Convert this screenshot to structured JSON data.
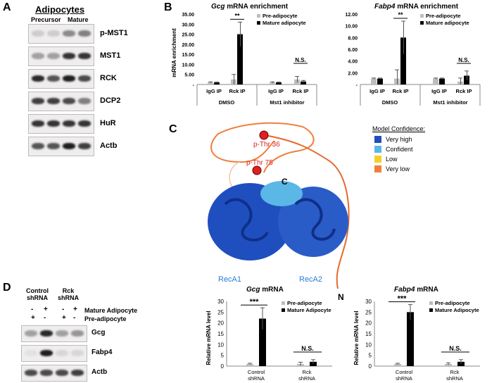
{
  "panelA": {
    "letter": "A",
    "header": "Adipocytes",
    "precursor": "Precursor",
    "mature": "Mature",
    "blots": [
      "p-MST1",
      "MST1",
      "RCK",
      "DCP2",
      "HuR",
      "Actb"
    ]
  },
  "panelB": {
    "letter": "B",
    "ylabel": "mRNA enrichment",
    "charts": [
      {
        "title_gene": "Gcg",
        "title_rest": " mRNA enrichment",
        "yticks": [
          "35.00",
          "30.00",
          "25.00",
          "20.00",
          "15.00",
          "10.00",
          "5.00",
          "-"
        ],
        "legend": [
          "Pre-adipocyte",
          "Mature adipocyte"
        ],
        "groups": [
          "IgG IP",
          "Rck IP",
          "IgG IP",
          "Rck IP"
        ],
        "conditions": [
          "DMSO",
          "Mst1 inhibitor"
        ],
        "sig": [
          "**",
          "N.S."
        ]
      },
      {
        "title_gene": "Fabp4",
        "title_rest": " mRNA enrichment",
        "yticks": [
          "12.00",
          "10.00",
          "8.00",
          "6.00",
          "4.00",
          "2.00",
          "-"
        ],
        "legend": [
          "Pre-adipocyte",
          "Mature adipocyte"
        ],
        "groups": [
          "IgG IP",
          "Rck IP",
          "IgG IP",
          "Rck IP"
        ],
        "conditions": [
          "DMSO",
          "Mst1 inhibitor"
        ],
        "sig": [
          "**",
          "N.S."
        ]
      }
    ]
  },
  "panelC": {
    "letter": "C",
    "legend_title": "Model Confidence:",
    "legend": [
      {
        "label": "Very high",
        "color": "#1f4fbf"
      },
      {
        "label": "Confident",
        "color": "#5ab7e6"
      },
      {
        "label": "Low",
        "color": "#f2d02a"
      },
      {
        "label": "Very low",
        "color": "#f07f3c"
      }
    ],
    "labels": {
      "pthr36": "p-Thr 36",
      "pthr75": "p-Thr 75",
      "c": "C",
      "n": "N",
      "reca1": "RecA1",
      "reca2": "RecA2"
    }
  },
  "panelD": {
    "letter": "D",
    "control": "Control shRNA",
    "rck": "Rck shRNA",
    "mature_row": "Mature Adipocyte",
    "pre_row": "Pre-adipocyte",
    "mature_signs": [
      "-",
      "+",
      "-",
      "+"
    ],
    "pre_signs": [
      "+",
      "-",
      "+",
      "-"
    ],
    "blots": [
      "Gcg",
      "Fabp4",
      "Actb"
    ],
    "ylabel": "Relative mRNA level",
    "charts": [
      {
        "title_gene": "Gcg",
        "title_rest": " mRNA",
        "legend": [
          "Pre-adipocyte",
          "Mature Adipocyte"
        ],
        "sig": [
          "***",
          "N.S."
        ],
        "groups": [
          "Control shRNA",
          "Rck shRNA"
        ]
      },
      {
        "title_gene": "Fabp4",
        "title_rest": " mRNA",
        "legend": [
          "Pre-adipocyte",
          "Mature Adipocyte"
        ],
        "sig": [
          "***",
          "N.S."
        ],
        "groups": [
          "Control shRNA",
          "Rck shRNA"
        ]
      }
    ]
  },
  "chart_data": [
    {
      "type": "bar",
      "title": "Gcg mRNA enrichment",
      "ylabel": "mRNA enrichment",
      "categories": [
        "DMSO IgG IP",
        "DMSO Rck IP",
        "Mst1 inhibitor IgG IP",
        "Mst1 inhibitor Rck IP"
      ],
      "ylim": [
        0,
        35
      ],
      "series": [
        {
          "name": "Pre-adipocyte",
          "values": [
            1.0,
            2.5,
            1.0,
            2.5
          ],
          "errors": [
            0.3,
            2.5,
            0.3,
            1.5
          ],
          "color": "#bdbdbd"
        },
        {
          "name": "Mature adipocyte",
          "values": [
            1.0,
            25.0,
            1.0,
            1.5
          ],
          "errors": [
            0.2,
            6.0,
            0.2,
            0.5
          ],
          "color": "#000000"
        }
      ]
    },
    {
      "type": "bar",
      "title": "Fabp4 mRNA enrichment",
      "ylabel": "mRNA enrichment",
      "categories": [
        "DMSO IgG IP",
        "DMSO Rck IP",
        "Mst1 inhibitor IgG IP",
        "Mst1 inhibitor Rck IP"
      ],
      "ylim": [
        0,
        12
      ],
      "series": [
        {
          "name": "Pre-adipocyte",
          "values": [
            1.0,
            1.0,
            1.0,
            0.5
          ],
          "errors": [
            0.1,
            1.5,
            0.1,
            0.6
          ],
          "color": "#bdbdbd"
        },
        {
          "name": "Mature adipocyte",
          "values": [
            1.0,
            8.0,
            1.0,
            1.5
          ],
          "errors": [
            0.1,
            2.8,
            0.1,
            0.8
          ],
          "color": "#000000"
        }
      ]
    },
    {
      "type": "bar",
      "title": "Gcg mRNA",
      "ylabel": "Relative mRNA level",
      "categories": [
        "Control shRNA",
        "Rck shRNA"
      ],
      "ylim": [
        0,
        30
      ],
      "yticks": [
        0,
        5,
        10,
        15,
        20,
        25,
        30
      ],
      "series": [
        {
          "name": "Pre-adipocyte",
          "values": [
            1.0,
            1.0
          ],
          "errors": [
            0.3,
            0.8
          ],
          "color": "#bdbdbd"
        },
        {
          "name": "Mature Adipocyte",
          "values": [
            22.0,
            2.0
          ],
          "errors": [
            5.0,
            1.0
          ],
          "color": "#000000"
        }
      ]
    },
    {
      "type": "bar",
      "title": "Fabp4 mRNA",
      "ylabel": "Relative mRNA level",
      "categories": [
        "Control shRNA",
        "Rck shRNA"
      ],
      "ylim": [
        0,
        30
      ],
      "yticks": [
        0,
        5,
        10,
        15,
        20,
        25,
        30
      ],
      "series": [
        {
          "name": "Pre-adipocyte",
          "values": [
            1.0,
            1.0
          ],
          "errors": [
            0.3,
            0.5
          ],
          "color": "#bdbdbd"
        },
        {
          "name": "Mature Adipocyte",
          "values": [
            25.0,
            2.0
          ],
          "errors": [
            3.5,
            1.0
          ],
          "color": "#000000"
        }
      ]
    }
  ]
}
